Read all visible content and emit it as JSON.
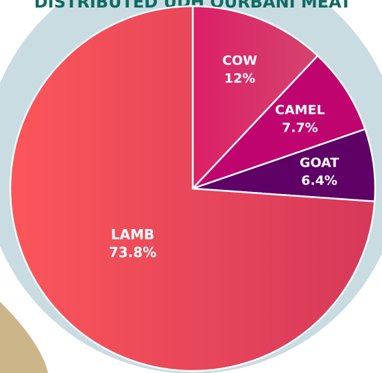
{
  "chart_data": {
    "type": "pie",
    "title": "DISTRIBUTED UDH QURBANI MEAT",
    "categories": [
      "COW",
      "CAMEL",
      "GOAT",
      "LAMB"
    ],
    "values": [
      12,
      7.7,
      6.4,
      73.8
    ],
    "value_labels": [
      "12%",
      "7.7%",
      "6.4%",
      "73.8%"
    ],
    "colors": [
      "#d4266a",
      "#c0046f",
      "#5e0066",
      "#f0505a"
    ]
  }
}
